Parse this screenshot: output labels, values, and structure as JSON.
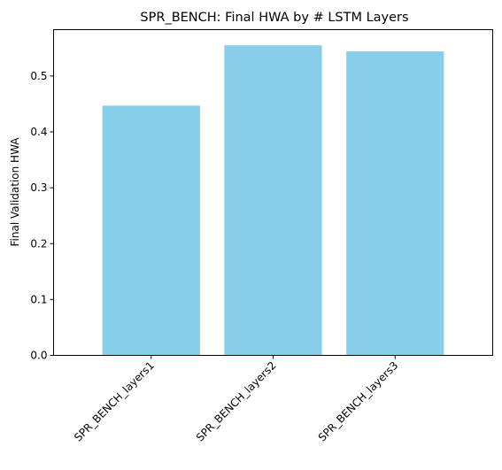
{
  "chart_data": {
    "type": "bar",
    "title": "SPR_BENCH: Final HWA by # LSTM Layers",
    "xlabel": "",
    "ylabel": "Final Validation HWA",
    "categories": [
      "SPR_BENCH_layers1",
      "SPR_BENCH_layers2",
      "SPR_BENCH_layers3"
    ],
    "values": [
      0.447,
      0.555,
      0.544
    ],
    "ylim": [
      0,
      0.583
    ],
    "yticks": [
      0.0,
      0.1,
      0.2,
      0.3,
      0.4,
      0.5
    ],
    "ytick_labels": [
      "0.0",
      "0.1",
      "0.2",
      "0.3",
      "0.4",
      "0.5"
    ],
    "bar_color": "#87CEEB",
    "grid": false,
    "legend": "none"
  }
}
